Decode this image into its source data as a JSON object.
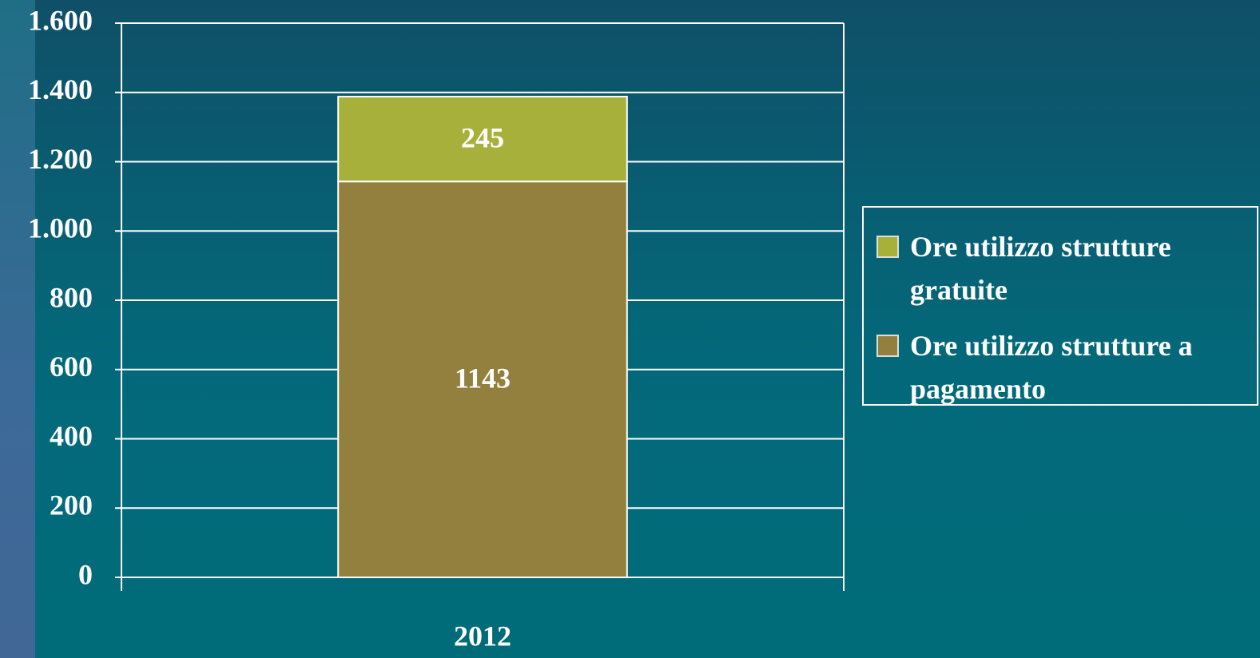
{
  "chart_data": {
    "type": "bar",
    "stacked": true,
    "categories": [
      "2012"
    ],
    "series": [
      {
        "name": "Ore utilizzo strutture a pagamento",
        "color": "#94803e",
        "values": [
          1143
        ]
      },
      {
        "name": "Ore utilizzo strutture gratuite",
        "color": "#a8b03c",
        "values": [
          245
        ]
      }
    ],
    "ylim": [
      0,
      1600
    ],
    "yticks": [
      0,
      200,
      400,
      600,
      800,
      {
        "value": 1000,
        "label": "1.000"
      },
      {
        "value": 1200,
        "label": "1.200"
      },
      {
        "value": 1400,
        "label": "1.400"
      },
      {
        "value": 1600,
        "label": "1.600"
      }
    ],
    "grid": true,
    "legend": "right"
  }
}
